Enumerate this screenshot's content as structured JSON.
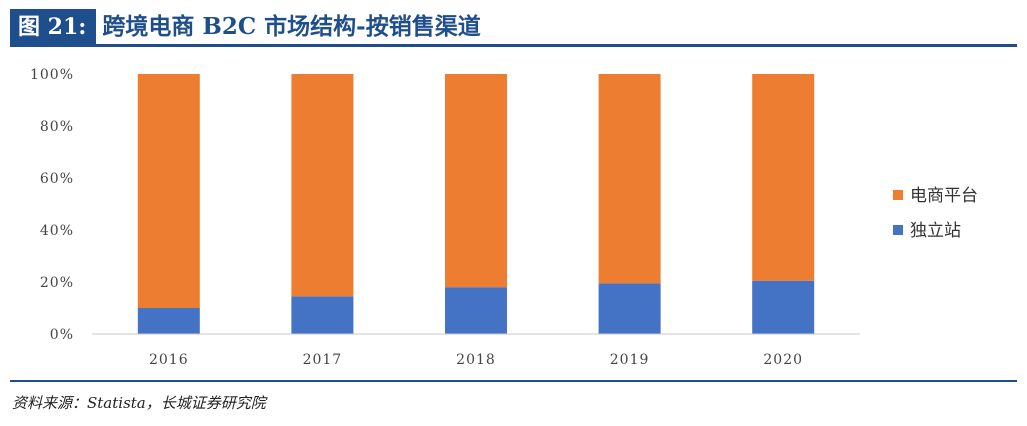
{
  "header": {
    "figure_label": "图 21:",
    "title": "跨境电商 B2C 市场结构-按销售渠道"
  },
  "source_note": "资料来源：Statista，长城证券研究院",
  "colors": {
    "accent": "#1f4e8c",
    "platform": "#ed7d31",
    "independent": "#4472c4"
  },
  "chart_data": {
    "type": "bar",
    "stacked": true,
    "categories": [
      "2016",
      "2017",
      "2018",
      "2019",
      "2020"
    ],
    "series": [
      {
        "name": "独立站",
        "values": [
          10,
          14.5,
          18,
          19.5,
          20.5
        ],
        "color": "#4472c4"
      },
      {
        "name": "电商平台",
        "values": [
          90,
          85.5,
          82,
          80.5,
          79.5
        ],
        "color": "#ed7d31"
      }
    ],
    "ylim": [
      0,
      100
    ],
    "yticks": [
      "0%",
      "20%",
      "40%",
      "60%",
      "80%",
      "100%"
    ],
    "legend_position": "right",
    "legend": [
      "电商平台",
      "独立站"
    ],
    "grid": false
  }
}
